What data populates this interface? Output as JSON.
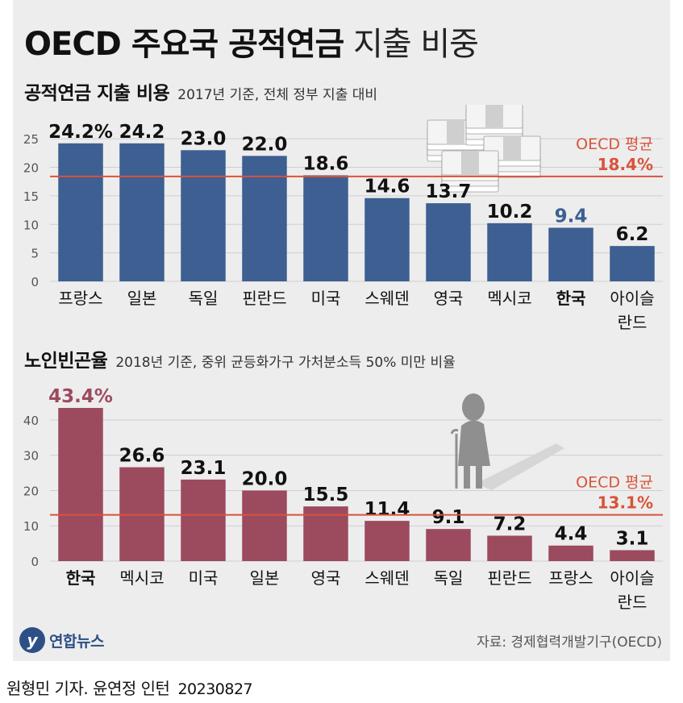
{
  "title": {
    "main": "OECD 주요국 공적연금",
    "rest": "지출 비중"
  },
  "section1": {
    "heading": "공적연금 지출 비용",
    "note": "2017년 기준, 전체 정부 지출 대비"
  },
  "section2": {
    "heading": "노인빈곤율",
    "note": "2018년 기준, 중위 균등화가구 가처분소득 50% 미만 비율"
  },
  "source": "자료: 경제협력개발기구(OECD)",
  "logo": {
    "mark": "y",
    "text": "연합뉴스"
  },
  "credit": {
    "authors": "원형민 기자. 윤연정 인턴",
    "date": "20230827"
  },
  "colors": {
    "bar1": "#3d5f92",
    "bar2": "#9c4a5e",
    "highlight1": "#3d5f92",
    "highlight2": "#9c4a5e",
    "average": "#d9533a",
    "text": "#111111"
  },
  "icons": [
    "money-stack-icon",
    "elderly-person-icon"
  ],
  "chart_data": [
    {
      "type": "bar",
      "categories": [
        "프랑스",
        "일본",
        "독일",
        "핀란드",
        "미국",
        "스웨덴",
        "영국",
        "멕시코",
        "한국",
        "아이슬\n란드"
      ],
      "values": [
        24.2,
        24.2,
        23.0,
        22.0,
        18.6,
        14.6,
        13.7,
        10.2,
        9.4,
        6.2
      ],
      "value_labels": [
        "24.2%",
        "24.2",
        "23.0",
        "22.0",
        "18.6",
        "14.6",
        "13.7",
        "10.2",
        "9.4",
        "6.2"
      ],
      "highlight_index": 8,
      "yticks": [
        0,
        5,
        10,
        15,
        20,
        25
      ],
      "ylim": [
        0,
        27
      ],
      "average": {
        "value": 18.4,
        "label": "OECD 평균",
        "value_label": "18.4%"
      },
      "grid": true
    },
    {
      "type": "bar",
      "categories": [
        "한국",
        "멕시코",
        "미국",
        "일본",
        "영국",
        "스웨덴",
        "독일",
        "핀란드",
        "프랑스",
        "아이슬\n란드"
      ],
      "values": [
        43.4,
        26.6,
        23.1,
        20.0,
        15.5,
        11.4,
        9.1,
        7.2,
        4.4,
        3.1
      ],
      "value_labels": [
        "43.4%",
        "26.6",
        "23.1",
        "20.0",
        "15.5",
        "11.4",
        "9.1",
        "7.2",
        "4.4",
        "3.1"
      ],
      "highlight_index": 0,
      "yticks": [
        0,
        10,
        20,
        30,
        40
      ],
      "ylim": [
        0,
        45
      ],
      "average": {
        "value": 13.1,
        "label": "OECD 평균",
        "value_label": "13.1%"
      },
      "grid": true
    }
  ]
}
